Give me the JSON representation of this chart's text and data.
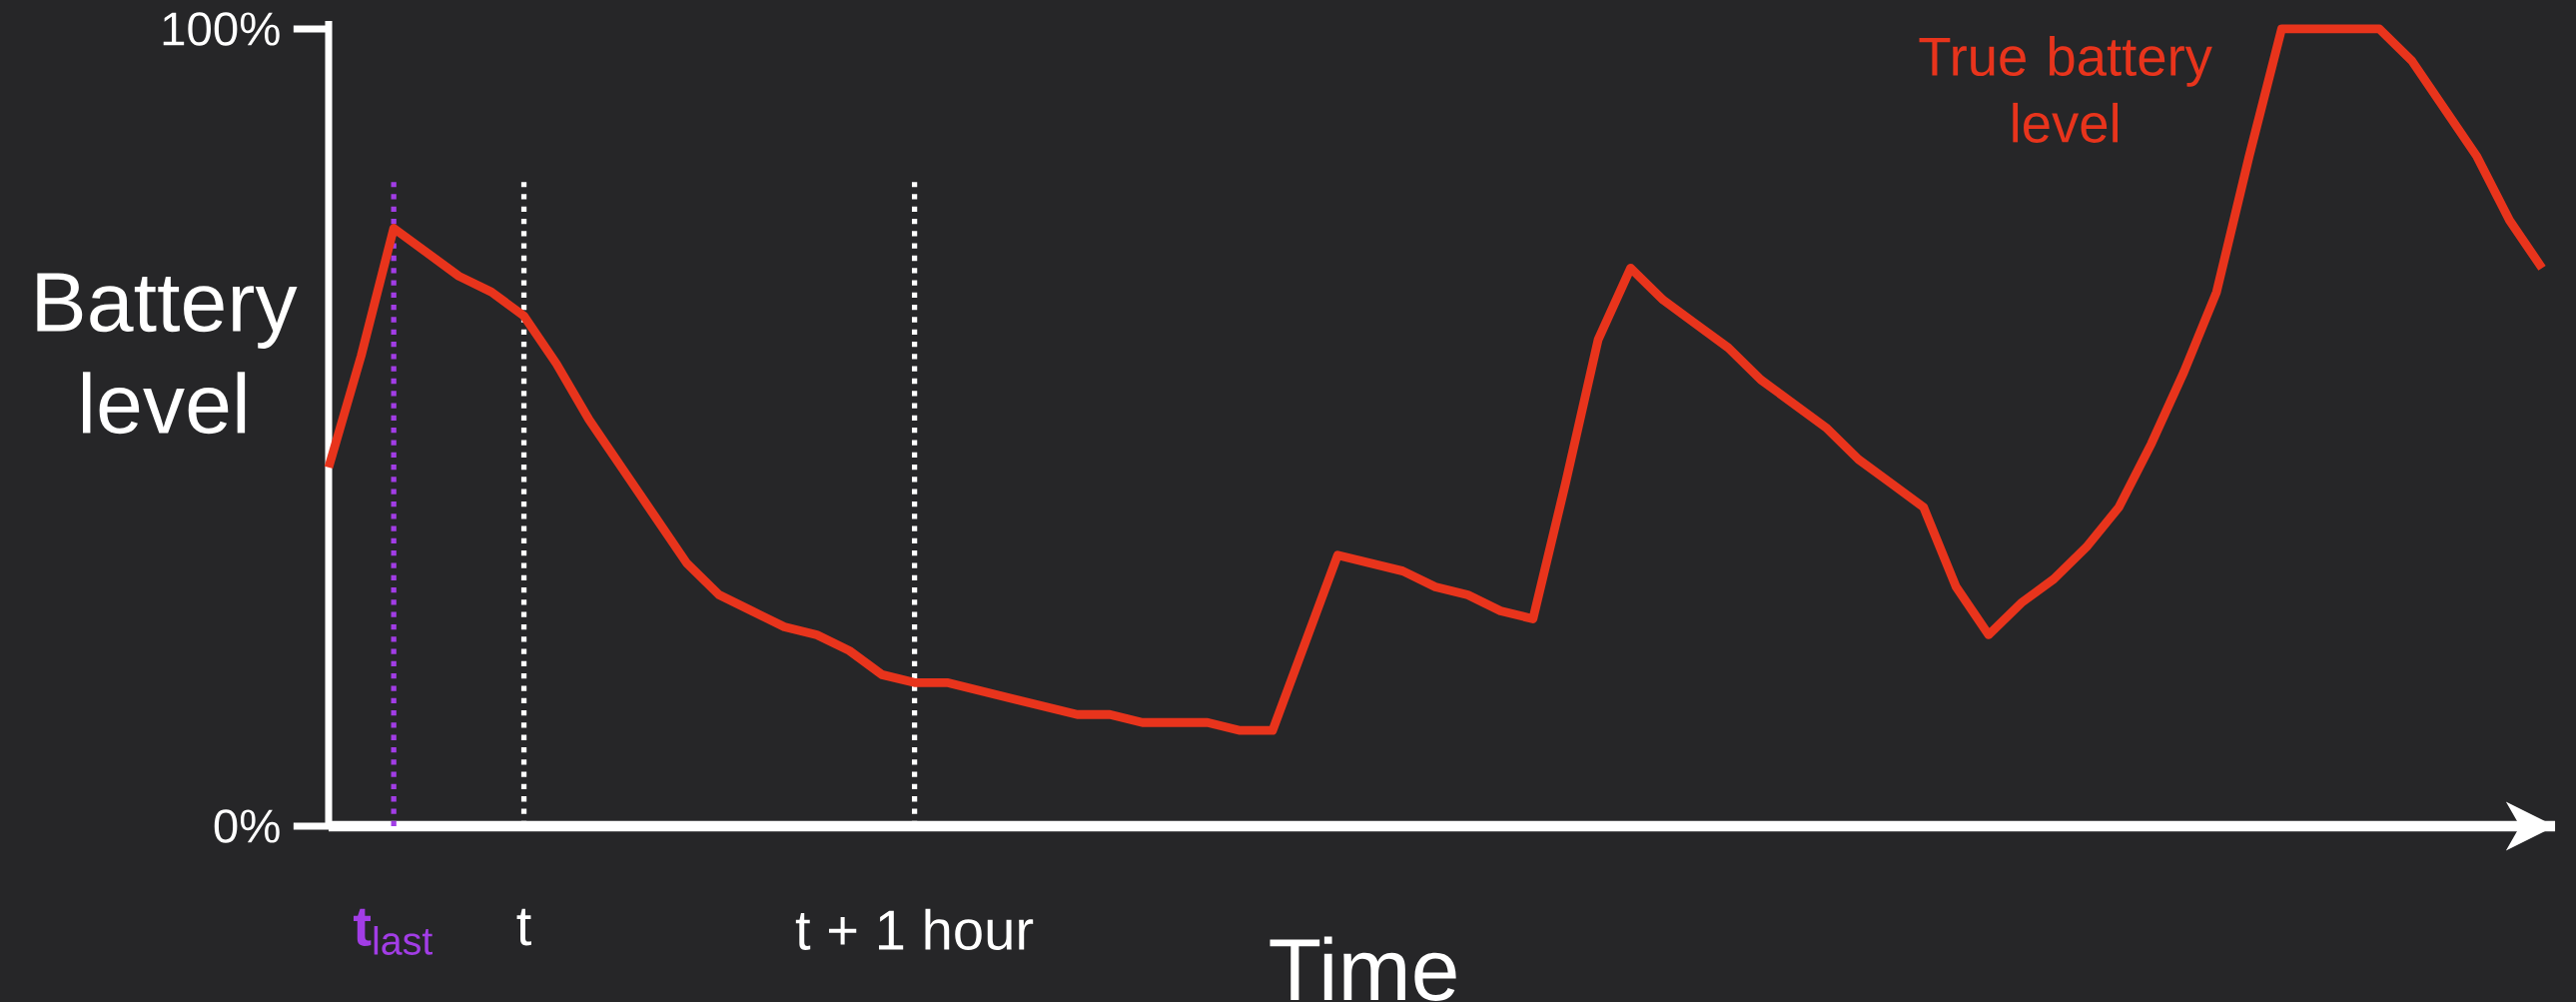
{
  "chart_data": {
    "type": "line",
    "xlabel": "Time",
    "ylabel": "Battery level",
    "categories": [
      null,
      null,
      "**t**$_{last}$",
      null,
      null,
      null,
      "t",
      null,
      null,
      null,
      null,
      null,
      null,
      null,
      null,
      null,
      null,
      null,
      "t + 1 hour",
      null,
      null,
      null,
      null,
      null,
      null,
      null,
      null,
      null,
      null,
      null,
      null,
      null,
      null,
      null,
      null,
      null,
      null,
      null,
      null,
      null,
      null,
      null,
      null,
      null,
      null,
      null,
      null,
      null,
      null,
      null,
      null,
      null,
      null,
      null,
      null,
      null,
      null,
      null,
      null,
      null,
      null,
      null,
      null,
      null,
      null,
      null,
      null,
      null,
      null
    ],
    "ylim": [
      0,
      101
    ],
    "yticks": [
      {
        "value": 0,
        "label": "0%"
      },
      {
        "value": 100,
        "label": "100%"
      }
    ],
    "ref_lines": [
      {
        "axis": "x",
        "value": "**t**$_{last}$",
        "color": "#a23de6",
        "line_style": "dotted"
      },
      {
        "axis": "x",
        "value": "t",
        "color": "#ffffff",
        "line_style": "dotted"
      },
      {
        "axis": "x",
        "value": "t + 1 hour",
        "color": "#ffffff",
        "line_style": "dotted"
      }
    ],
    "marker": "none",
    "line_style": "solid",
    "series": [
      {
        "name": "True battery level",
        "color": "#e8341c",
        "values": [
          45,
          59,
          75,
          72,
          69,
          67,
          64,
          58,
          51,
          45,
          39,
          33,
          29,
          27,
          25,
          24,
          22,
          19,
          18,
          18,
          17,
          16,
          15,
          14,
          14,
          13,
          13,
          13,
          12,
          12,
          23,
          34,
          33,
          32,
          30,
          29,
          27,
          26,
          43,
          61,
          70,
          66,
          63,
          60,
          56,
          53,
          50,
          46,
          43,
          40,
          30,
          24,
          28,
          31,
          35,
          40,
          48,
          57,
          67,
          84,
          100,
          100,
          100,
          100,
          96,
          90,
          84,
          76,
          70
        ]
      }
    ]
  }
}
